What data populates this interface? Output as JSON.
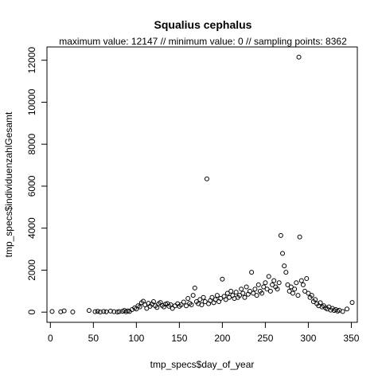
{
  "chart_data": {
    "type": "scatter",
    "title": "Squalius cephalus",
    "subtitle": "maximum value: 12147  //  minimum value: 0  // sampling points: 8362",
    "xlabel": "tmp_specs$day_of_year",
    "ylabel": "tmp_specs$individuenzahlGesamt",
    "xlim": [
      -4,
      357
    ],
    "ylim": [
      -485,
      12632
    ],
    "xticks": [
      "0",
      "50",
      "100",
      "150",
      "200",
      "250",
      "300",
      "350"
    ],
    "yticks": [
      "0",
      "2000",
      "4000",
      "6000",
      "8000",
      "10000",
      "12000"
    ],
    "grid": false,
    "legend": "none",
    "marker": "open-circle",
    "points": [
      [
        2,
        30
      ],
      [
        12,
        15
      ],
      [
        16,
        60
      ],
      [
        26,
        10
      ],
      [
        45,
        80
      ],
      [
        52,
        20
      ],
      [
        55,
        40
      ],
      [
        58,
        10
      ],
      [
        62,
        30
      ],
      [
        65,
        15
      ],
      [
        70,
        50
      ],
      [
        74,
        20
      ],
      [
        78,
        10
      ],
      [
        80,
        25
      ],
      [
        84,
        40
      ],
      [
        86,
        80
      ],
      [
        88,
        15
      ],
      [
        90,
        60
      ],
      [
        92,
        30
      ],
      [
        95,
        120
      ],
      [
        98,
        200
      ],
      [
        100,
        150
      ],
      [
        102,
        300
      ],
      [
        104,
        250
      ],
      [
        106,
        450
      ],
      [
        108,
        520
      ],
      [
        110,
        350
      ],
      [
        112,
        180
      ],
      [
        114,
        420
      ],
      [
        116,
        280
      ],
      [
        118,
        380
      ],
      [
        120,
        500
      ],
      [
        122,
        300
      ],
      [
        124,
        220
      ],
      [
        126,
        400
      ],
      [
        128,
        460
      ],
      [
        130,
        320
      ],
      [
        132,
        250
      ],
      [
        134,
        380
      ],
      [
        136,
        410
      ],
      [
        138,
        280
      ],
      [
        140,
        350
      ],
      [
        142,
        180
      ],
      [
        145,
        300
      ],
      [
        148,
        400
      ],
      [
        150,
        280
      ],
      [
        152,
        350
      ],
      [
        155,
        480
      ],
      [
        158,
        300
      ],
      [
        160,
        650
      ],
      [
        162,
        420
      ],
      [
        164,
        350
      ],
      [
        166,
        800
      ],
      [
        168,
        1150
      ],
      [
        170,
        500
      ],
      [
        172,
        400
      ],
      [
        174,
        600
      ],
      [
        176,
        350
      ],
      [
        178,
        700
      ],
      [
        180,
        500
      ],
      [
        182,
        6350
      ],
      [
        184,
        400
      ],
      [
        186,
        550
      ],
      [
        188,
        700
      ],
      [
        190,
        450
      ],
      [
        192,
        600
      ],
      [
        194,
        800
      ],
      [
        196,
        500
      ],
      [
        198,
        650
      ],
      [
        200,
        1570
      ],
      [
        202,
        750
      ],
      [
        204,
        600
      ],
      [
        206,
        900
      ],
      [
        208,
        700
      ],
      [
        210,
        1000
      ],
      [
        212,
        800
      ],
      [
        214,
        650
      ],
      [
        216,
        950
      ],
      [
        218,
        700
      ],
      [
        220,
        800
      ],
      [
        222,
        1100
      ],
      [
        224,
        900
      ],
      [
        226,
        700
      ],
      [
        228,
        1200
      ],
      [
        230,
        850
      ],
      [
        232,
        1000
      ],
      [
        234,
        1900
      ],
      [
        236,
        900
      ],
      [
        238,
        1100
      ],
      [
        240,
        800
      ],
      [
        242,
        1300
      ],
      [
        244,
        1000
      ],
      [
        246,
        900
      ],
      [
        248,
        1200
      ],
      [
        250,
        1400
      ],
      [
        252,
        1100
      ],
      [
        254,
        1700
      ],
      [
        256,
        1000
      ],
      [
        258,
        1300
      ],
      [
        260,
        1500
      ],
      [
        262,
        1200
      ],
      [
        264,
        1100
      ],
      [
        266,
        1400
      ],
      [
        268,
        3650
      ],
      [
        270,
        2800
      ],
      [
        272,
        2200
      ],
      [
        274,
        1900
      ],
      [
        276,
        1300
      ],
      [
        278,
        1000
      ],
      [
        280,
        1200
      ],
      [
        282,
        900
      ],
      [
        284,
        1100
      ],
      [
        286,
        1400
      ],
      [
        288,
        800
      ],
      [
        289,
        12147
      ],
      [
        290,
        3580
      ],
      [
        292,
        1500
      ],
      [
        294,
        1300
      ],
      [
        296,
        1000
      ],
      [
        298,
        1600
      ],
      [
        300,
        900
      ],
      [
        302,
        700
      ],
      [
        304,
        800
      ],
      [
        306,
        500
      ],
      [
        308,
        600
      ],
      [
        310,
        400
      ],
      [
        312,
        300
      ],
      [
        314,
        450
      ],
      [
        316,
        250
      ],
      [
        318,
        300
      ],
      [
        320,
        200
      ],
      [
        322,
        150
      ],
      [
        324,
        250
      ],
      [
        326,
        100
      ],
      [
        328,
        180
      ],
      [
        330,
        80
      ],
      [
        332,
        120
      ],
      [
        334,
        50
      ],
      [
        336,
        90
      ],
      [
        340,
        30
      ],
      [
        345,
        150
      ],
      [
        351,
        460
      ]
    ]
  }
}
